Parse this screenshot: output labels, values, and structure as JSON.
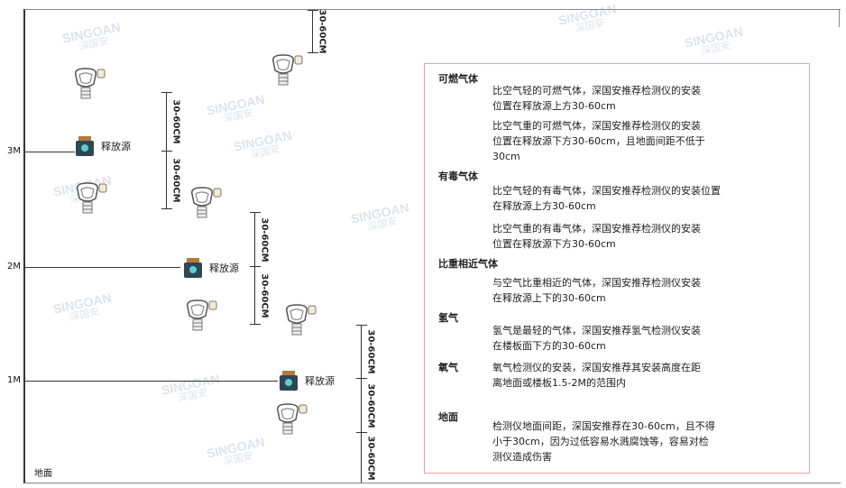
{
  "watermark": "SINGOAN 深国安",
  "levels": {
    "m3": "3M",
    "m2": "2M",
    "m1": "1M",
    "ground": "地面"
  },
  "dimension_label": "30-60CM",
  "source_label": "释放源",
  "info": {
    "combustible": {
      "title": "可燃气体",
      "light": "比空气轻的可燃气体，深国安推荐检测仪的安装\n位置在释放源上方30-60cm",
      "heavy": "比空气重的可燃气体，深国安推荐检测仪的安装\n位置在释放源下方30-60cm，且地面间距不低于\n30cm"
    },
    "toxic": {
      "title": "有毒气体",
      "light": "比空气轻的有毒气体，深国安推荐检测仪的安装位置\n在释放源上方30-60cm",
      "heavy": "比空气重的有毒气体，深国安推荐检测仪的安装\n位置在释放源下方30-60cm"
    },
    "similar": {
      "title": "比重相近气体",
      "text": "与空气比重相近的气体，深国安推荐检测仪安装\n在释放源上下的30-60cm"
    },
    "hydrogen": {
      "title": "氢气",
      "text": "氢气是最轻的气体，深国安推荐氢气检测仪安装\n在楼板面下方的30-60cm"
    },
    "oxygen": {
      "title": "氧气",
      "text": "氧气检测仪的安装，深国安推荐其安装高度在距\n离地面或楼板1.5-2M的范围内"
    },
    "ground": {
      "title": "地面",
      "text": "检测仪地面间距，深国安推荐在30-60cm，且不得\n小于30cm，因为过低容易水溅腐蚀等，容易对检\n测仪造成伤害"
    }
  }
}
